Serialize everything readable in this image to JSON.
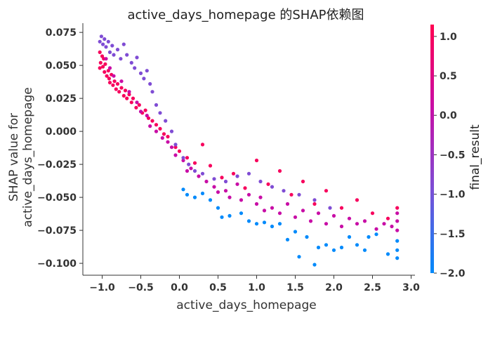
{
  "chart_data": {
    "type": "scatter",
    "title": "active_days_homepage 的SHAP依赖图",
    "xlabel": "active_days_homepage",
    "ylabel": [
      "SHAP value for",
      "active_days_homepage"
    ],
    "xlim": [
      -1.25,
      3.05
    ],
    "ylim": [
      -0.109,
      0.082
    ],
    "x_ticks": [
      -1.0,
      -0.5,
      0.0,
      0.5,
      1.0,
      1.5,
      2.0,
      2.5,
      3.0
    ],
    "x_tick_labels": [
      "−1.0",
      "−0.5",
      "0.0",
      "0.5",
      "1.0",
      "1.5",
      "2.0",
      "2.5",
      "3.0"
    ],
    "y_ticks": [
      0.075,
      0.05,
      0.025,
      0.0,
      -0.025,
      -0.05,
      -0.075,
      -0.1
    ],
    "y_tick_labels": [
      "0.075",
      "0.050",
      "0.025",
      "0.000",
      "−0.025",
      "−0.050",
      "−0.075",
      "−0.100"
    ],
    "grid": false,
    "colorbar": {
      "label": "final_result",
      "range": [
        -2.0,
        1.15
      ],
      "ticks": [
        1.0,
        0.5,
        0.0,
        -0.5,
        -1.0,
        -1.5,
        -2.0
      ],
      "tick_labels": [
        "1.0",
        "0.5",
        "0.0",
        "−0.5",
        "−1.0",
        "−1.5",
        "−2.0"
      ],
      "colors": [
        "#008afb",
        "#7b4fd6",
        "#c80ea6",
        "#ff0051"
      ]
    },
    "series": [
      {
        "color_value": 1.0,
        "points": [
          [
            -1.03,
            0.06
          ],
          [
            -1.02,
            0.052
          ],
          [
            -1.0,
            0.057
          ],
          [
            -0.99,
            0.049
          ],
          [
            -0.98,
            0.055
          ],
          [
            -1.03,
            0.048
          ],
          [
            -0.97,
            0.045
          ],
          [
            -0.96,
            0.051
          ],
          [
            -0.94,
            0.042
          ],
          [
            -0.92,
            0.046
          ],
          [
            -0.91,
            0.04
          ],
          [
            -0.9,
            0.037
          ],
          [
            -0.88,
            0.043
          ],
          [
            -0.86,
            0.035
          ],
          [
            -0.84,
            0.038
          ],
          [
            -0.82,
            0.032
          ],
          [
            -0.8,
            0.036
          ],
          [
            -0.78,
            0.03
          ],
          [
            -0.75,
            0.033
          ],
          [
            -0.72,
            0.027
          ],
          [
            -0.7,
            0.031
          ],
          [
            -0.68,
            0.025
          ],
          [
            -0.65,
            0.028
          ],
          [
            -0.62,
            0.022
          ],
          [
            -0.6,
            0.025
          ],
          [
            -0.56,
            0.018
          ],
          [
            -0.52,
            0.02
          ],
          [
            -0.48,
            0.014
          ],
          [
            -0.44,
            0.016
          ],
          [
            -0.4,
            0.01
          ],
          [
            -0.35,
            0.008
          ],
          [
            -0.3,
            0.005
          ],
          [
            -0.25,
            0.002
          ],
          [
            -0.2,
            -0.002
          ],
          [
            -0.15,
            -0.004
          ],
          [
            -0.05,
            -0.012
          ],
          [
            0.0,
            -0.015
          ],
          [
            0.1,
            -0.02
          ],
          [
            0.2,
            -0.024
          ],
          [
            0.3,
            -0.01
          ],
          [
            0.4,
            -0.026
          ],
          [
            0.55,
            -0.035
          ],
          [
            0.7,
            -0.032
          ],
          [
            0.85,
            -0.043
          ],
          [
            1.0,
            -0.022
          ],
          [
            1.15,
            -0.04
          ],
          [
            1.3,
            -0.03
          ],
          [
            1.45,
            -0.048
          ],
          [
            1.6,
            -0.038
          ],
          [
            1.75,
            -0.055
          ],
          [
            1.9,
            -0.045
          ],
          [
            2.1,
            -0.058
          ],
          [
            2.3,
            -0.052
          ],
          [
            2.5,
            -0.062
          ],
          [
            2.7,
            -0.066
          ],
          [
            2.82,
            -0.058
          ]
        ]
      },
      {
        "color_value": 0.1,
        "points": [
          [
            -0.95,
            0.055
          ],
          [
            -0.9,
            0.048
          ],
          [
            -0.85,
            0.042
          ],
          [
            -0.75,
            0.038
          ],
          [
            -0.65,
            0.03
          ],
          [
            -0.55,
            0.022
          ],
          [
            -0.5,
            0.015
          ],
          [
            -0.42,
            0.012
          ],
          [
            -0.38,
            0.004
          ],
          [
            -0.3,
            0.0
          ],
          [
            -0.22,
            -0.005
          ],
          [
            -0.15,
            -0.008
          ],
          [
            -0.1,
            -0.012
          ],
          [
            -0.05,
            -0.018
          ],
          [
            0.05,
            -0.022
          ],
          [
            0.1,
            -0.03
          ],
          [
            0.15,
            -0.028
          ],
          [
            0.25,
            -0.034
          ],
          [
            0.35,
            -0.038
          ],
          [
            0.45,
            -0.042
          ],
          [
            0.5,
            -0.046
          ],
          [
            0.6,
            -0.045
          ],
          [
            0.65,
            -0.05
          ],
          [
            0.75,
            -0.04
          ],
          [
            0.8,
            -0.052
          ],
          [
            0.9,
            -0.048
          ],
          [
            1.0,
            -0.055
          ],
          [
            1.05,
            -0.05
          ],
          [
            1.1,
            -0.06
          ],
          [
            1.2,
            -0.058
          ],
          [
            1.3,
            -0.062
          ],
          [
            1.4,
            -0.055
          ],
          [
            1.5,
            -0.065
          ],
          [
            1.6,
            -0.06
          ],
          [
            1.7,
            -0.068
          ],
          [
            1.8,
            -0.062
          ],
          [
            1.9,
            -0.07
          ],
          [
            2.0,
            -0.064
          ],
          [
            2.1,
            -0.072
          ],
          [
            2.2,
            -0.066
          ],
          [
            2.3,
            -0.07
          ],
          [
            2.4,
            -0.068
          ],
          [
            2.55,
            -0.074
          ],
          [
            2.65,
            -0.07
          ],
          [
            2.75,
            -0.072
          ],
          [
            2.82,
            -0.068
          ],
          [
            2.82,
            -0.062
          ],
          [
            2.82,
            -0.075
          ]
        ]
      },
      {
        "color_value": -0.9,
        "points": [
          [
            -1.03,
            0.068
          ],
          [
            -1.01,
            0.072
          ],
          [
            -0.99,
            0.066
          ],
          [
            -0.97,
            0.07
          ],
          [
            -0.95,
            0.064
          ],
          [
            -0.92,
            0.068
          ],
          [
            -0.9,
            0.06
          ],
          [
            -0.87,
            0.065
          ],
          [
            -0.85,
            0.058
          ],
          [
            -0.8,
            0.062
          ],
          [
            -0.76,
            0.055
          ],
          [
            -0.72,
            0.066
          ],
          [
            -0.68,
            0.058
          ],
          [
            -0.62,
            0.052
          ],
          [
            -0.58,
            0.048
          ],
          [
            -0.55,
            0.056
          ],
          [
            -0.5,
            0.044
          ],
          [
            -0.46,
            0.04
          ],
          [
            -0.42,
            0.046
          ],
          [
            -0.38,
            0.036
          ],
          [
            -0.35,
            0.03
          ],
          [
            -0.3,
            0.02
          ],
          [
            -0.25,
            0.014
          ],
          [
            -0.18,
            0.008
          ],
          [
            -0.1,
            0.0
          ],
          [
            -0.05,
            -0.01
          ],
          [
            0.05,
            -0.02
          ],
          [
            0.12,
            -0.025
          ],
          [
            0.2,
            -0.03
          ],
          [
            0.3,
            -0.032
          ],
          [
            0.45,
            -0.036
          ],
          [
            0.6,
            -0.038
          ],
          [
            0.75,
            -0.034
          ],
          [
            0.9,
            -0.032
          ],
          [
            1.05,
            -0.038
          ],
          [
            1.2,
            -0.042
          ],
          [
            1.35,
            -0.045
          ],
          [
            1.55,
            -0.048
          ],
          [
            1.75,
            -0.052
          ],
          [
            1.95,
            -0.058
          ]
        ]
      },
      {
        "color_value": -2.0,
        "points": [
          [
            0.05,
            -0.044
          ],
          [
            0.1,
            -0.048
          ],
          [
            0.2,
            -0.05
          ],
          [
            0.3,
            -0.047
          ],
          [
            0.4,
            -0.052
          ],
          [
            0.5,
            -0.058
          ],
          [
            0.55,
            -0.065
          ],
          [
            0.65,
            -0.064
          ],
          [
            0.8,
            -0.062
          ],
          [
            0.9,
            -0.068
          ],
          [
            1.0,
            -0.07
          ],
          [
            1.1,
            -0.069
          ],
          [
            1.2,
            -0.072
          ],
          [
            1.3,
            -0.07
          ],
          [
            1.4,
            -0.082
          ],
          [
            1.5,
            -0.076
          ],
          [
            1.55,
            -0.095
          ],
          [
            1.65,
            -0.08
          ],
          [
            1.75,
            -0.101
          ],
          [
            1.8,
            -0.088
          ],
          [
            1.9,
            -0.086
          ],
          [
            2.0,
            -0.09
          ],
          [
            2.1,
            -0.088
          ],
          [
            2.2,
            -0.08
          ],
          [
            2.3,
            -0.086
          ],
          [
            2.4,
            -0.09
          ],
          [
            2.45,
            -0.08
          ],
          [
            2.55,
            -0.078
          ],
          [
            2.7,
            -0.093
          ],
          [
            2.82,
            -0.096
          ],
          [
            2.82,
            -0.09
          ],
          [
            2.82,
            -0.083
          ]
        ]
      }
    ]
  }
}
